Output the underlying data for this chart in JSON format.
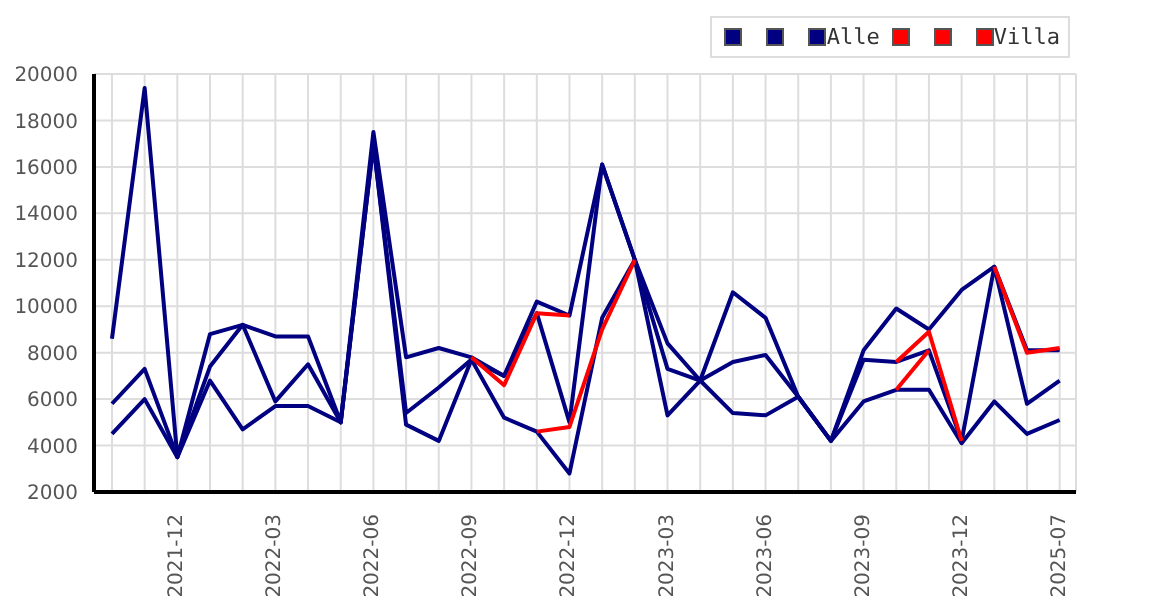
{
  "chart_data": {
    "type": "line",
    "categories": [
      null,
      null,
      "2021-12",
      null,
      null,
      "2022-03",
      null,
      null,
      "2022-06",
      null,
      null,
      "2022-09",
      null,
      null,
      "2022-12",
      null,
      null,
      "2023-03",
      null,
      null,
      "2023-06",
      null,
      null,
      "2023-09",
      null,
      null,
      "2023-12",
      null,
      null,
      "2025-07"
    ],
    "series": [
      {
        "color": "#000080",
        "values": [
          8600,
          19400,
          3500,
          8800,
          9200,
          8700,
          8700,
          5000,
          17500,
          7800,
          8200,
          7800,
          7000,
          10200,
          9600,
          16100,
          12000,
          8400,
          6800,
          10600,
          9500,
          6100,
          4200,
          8100,
          9900,
          9000,
          10700,
          11700,
          8100,
          8100
        ]
      },
      {
        "color": "#000080",
        "values": [
          5800,
          7300,
          3500,
          7400,
          9200,
          5900,
          7500,
          5000,
          17000,
          5400,
          6500,
          7700,
          5200,
          4600,
          2800,
          9500,
          12000,
          7300,
          6800,
          7600,
          7900,
          6100,
          4200,
          7700,
          7600,
          8100,
          4200,
          11700,
          5800,
          6800
        ]
      },
      {
        "name": "Alle",
        "color": "#000080",
        "values": [
          4500,
          6000,
          3500,
          6800,
          4700,
          5700,
          5700,
          5000,
          17000,
          4900,
          4200,
          7700,
          7000,
          9700,
          5000,
          16100,
          12000,
          5300,
          6800,
          5400,
          5300,
          6100,
          4200,
          5900,
          6400,
          6400,
          4100,
          5900,
          4500,
          5100
        ]
      },
      {
        "color": "#ff0000",
        "values": [
          null,
          null,
          null,
          null,
          null,
          null,
          null,
          null,
          null,
          null,
          null,
          7800,
          6600,
          9700,
          9600,
          null,
          null,
          null,
          null,
          null,
          null,
          null,
          null,
          null,
          null,
          null,
          null,
          11700,
          8000,
          8200
        ]
      },
      {
        "color": "#ff0000",
        "values": [
          null,
          null,
          null,
          null,
          null,
          null,
          null,
          null,
          null,
          null,
          null,
          null,
          null,
          4600,
          4800,
          9000,
          12000,
          null,
          null,
          null,
          null,
          null,
          null,
          null,
          7600,
          8900,
          4200,
          null,
          null,
          null
        ]
      },
      {
        "name": "Villa",
        "color": "#ff0000",
        "values": [
          null,
          null,
          null,
          null,
          null,
          null,
          null,
          null,
          null,
          null,
          null,
          null,
          null,
          null,
          null,
          null,
          null,
          null,
          null,
          null,
          null,
          null,
          null,
          null,
          6400,
          8100,
          null,
          null,
          null,
          null
        ]
      }
    ],
    "ylim": [
      2000,
      20000
    ],
    "yticks": [
      2000,
      4000,
      6000,
      8000,
      10000,
      12000,
      14000,
      16000,
      18000,
      20000
    ],
    "grid": true,
    "legend": "top right",
    "marker": "none",
    "line_style": "solid"
  }
}
